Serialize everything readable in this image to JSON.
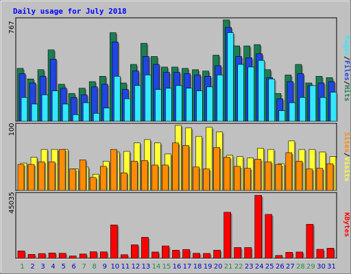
{
  "colors": {
    "background": "#c0c0c0",
    "panel": "#c0c0c0",
    "title": "#0000ff",
    "hits": "#1a7f52",
    "files": "#2045e0",
    "pages": "#33e8ff",
    "visits": "#ffff33",
    "sites": "#ff8c00",
    "kbytes": "#ff0000",
    "weekend_day": "#1f8b4c",
    "weekday_day": "#0000cc"
  },
  "chart_data": [
    {
      "type": "bar",
      "title": "Daily usage for July 2018",
      "ylabel_max": "767",
      "y_max": 767,
      "side_labels": [
        "Pages",
        "Files",
        "Hits"
      ],
      "categories": [
        "1",
        "2",
        "3",
        "4",
        "5",
        "6",
        "7",
        "8",
        "9",
        "10",
        "11",
        "12",
        "13",
        "14",
        "15",
        "16",
        "17",
        "18",
        "19",
        "20",
        "21",
        "22",
        "23",
        "24",
        "25",
        "26",
        "27",
        "28",
        "29",
        "30",
        "31"
      ],
      "series": [
        {
          "name": "Hits",
          "values": [
            400,
            320,
            390,
            540,
            280,
            210,
            250,
            300,
            340,
            670,
            290,
            430,
            590,
            490,
            410,
            410,
            400,
            390,
            380,
            500,
            767,
            570,
            570,
            580,
            390,
            210,
            350,
            430,
            290,
            340,
            330
          ]
        },
        {
          "name": "Files",
          "values": [
            360,
            290,
            340,
            470,
            250,
            180,
            200,
            260,
            280,
            600,
            240,
            380,
            490,
            430,
            370,
            370,
            360,
            350,
            340,
            420,
            710,
            490,
            480,
            510,
            330,
            170,
            300,
            360,
            270,
            290,
            300
          ]
        },
        {
          "name": "Pages",
          "values": [
            180,
            130,
            200,
            230,
            130,
            50,
            140,
            60,
            100,
            340,
            170,
            270,
            350,
            240,
            250,
            270,
            250,
            230,
            260,
            350,
            670,
            430,
            410,
            460,
            320,
            80,
            140,
            180,
            270,
            180,
            220
          ]
        }
      ]
    },
    {
      "type": "bar",
      "ylabel_max": "100",
      "y_max": 100,
      "side_labels": [
        "Sites",
        "Visits"
      ],
      "categories": [
        "1",
        "2",
        "3",
        "4",
        "5",
        "6",
        "7",
        "8",
        "9",
        "10",
        "11",
        "12",
        "13",
        "14",
        "15",
        "16",
        "17",
        "18",
        "19",
        "20",
        "21",
        "22",
        "23",
        "24",
        "25",
        "26",
        "27",
        "28",
        "29",
        "30",
        "31"
      ],
      "series": [
        {
          "name": "Visits",
          "values": [
            42,
            51,
            63,
            63,
            63,
            33,
            36,
            25,
            45,
            59,
            60,
            73,
            78,
            73,
            56,
            100,
            96,
            83,
            97,
            90,
            54,
            52,
            50,
            65,
            63,
            41,
            76,
            63,
            63,
            59,
            52
          ]
        },
        {
          "name": "Sites",
          "values": [
            40,
            40,
            44,
            44,
            63,
            33,
            47,
            20,
            37,
            63,
            27,
            45,
            46,
            39,
            39,
            73,
            69,
            36,
            33,
            66,
            51,
            37,
            34,
            48,
            44,
            40,
            58,
            45,
            33,
            34,
            41
          ]
        }
      ]
    },
    {
      "type": "bar",
      "ylabel_max": "45035",
      "y_max": 45035,
      "side_labels": [
        "KBytes"
      ],
      "categories": [
        "1",
        "2",
        "3",
        "4",
        "5",
        "6",
        "7",
        "8",
        "9",
        "10",
        "11",
        "12",
        "13",
        "14",
        "15",
        "16",
        "17",
        "18",
        "19",
        "20",
        "21",
        "22",
        "23",
        "24",
        "25",
        "26",
        "27",
        "28",
        "29",
        "30",
        "31"
      ],
      "weekend_days": [
        "1",
        "7",
        "8",
        "14",
        "15",
        "21",
        "22",
        "28",
        "29"
      ],
      "series": [
        {
          "name": "KBytes",
          "values": [
            5200,
            2700,
            3300,
            3700,
            3500,
            1600,
            3000,
            4600,
            4500,
            23500,
            2500,
            9500,
            14800,
            4400,
            8700,
            5700,
            6200,
            3500,
            3400,
            5700,
            32500,
            7600,
            7600,
            44500,
            31000,
            2000,
            4200,
            4400,
            24000,
            6300,
            7100
          ]
        }
      ]
    }
  ]
}
